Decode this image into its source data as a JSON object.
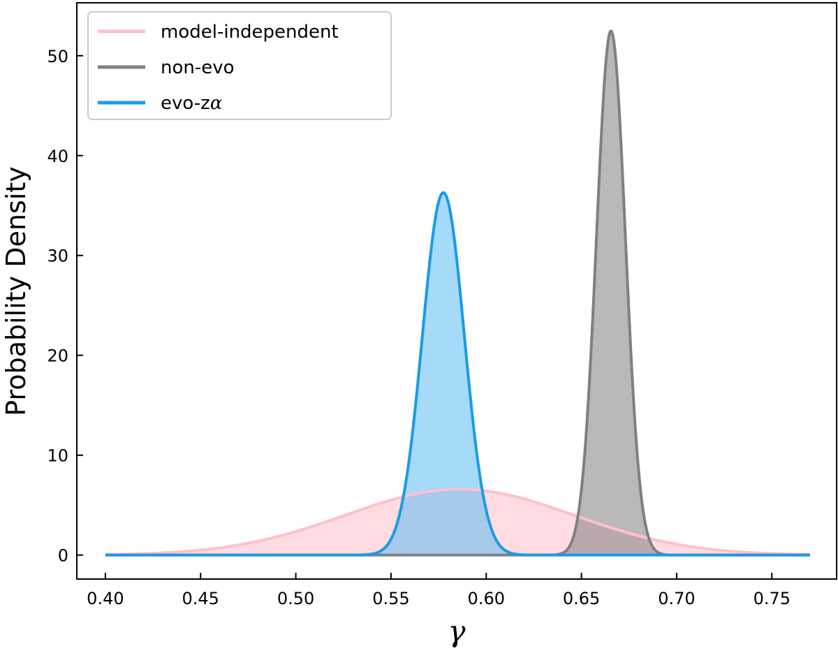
{
  "chart_data": {
    "type": "area",
    "xlabel": "γ",
    "ylabel": "Probability Density",
    "xlim": [
      0.385,
      0.784
    ],
    "ylim": [
      -2.4,
      55.3
    ],
    "xticks": [
      0.4,
      0.45,
      0.5,
      0.55,
      0.6,
      0.65,
      0.7,
      0.75
    ],
    "xtick_labels": [
      "0.40",
      "0.45",
      "0.50",
      "0.55",
      "0.60",
      "0.65",
      "0.70",
      "0.75"
    ],
    "yticks": [
      0,
      10,
      20,
      30,
      40,
      50
    ],
    "ytick_labels": [
      "0",
      "10",
      "20",
      "30",
      "40",
      "50"
    ],
    "x_range": [
      0.4,
      0.77
    ],
    "legend_position": "upper-left",
    "series": [
      {
        "name": "model-independent",
        "distribution": "gaussian",
        "mean": 0.586,
        "sigma": 0.06,
        "peak": 6.6,
        "line_color": "#ffc0cb",
        "fill_color": "#ffc0cb"
      },
      {
        "name": "non-evo",
        "distribution": "gaussian",
        "mean": 0.6655,
        "sigma": 0.0076,
        "peak": 52.5,
        "line_color": "#808080",
        "fill_color": "#808080"
      },
      {
        "name": "evo-zα",
        "legend_text": "evo-z",
        "legend_suffix": "α",
        "distribution": "gaussian",
        "mean": 0.5775,
        "sigma": 0.011,
        "peak": 36.3,
        "line_color": "#1a9be6",
        "fill_color": "#5cbcf4"
      }
    ]
  }
}
